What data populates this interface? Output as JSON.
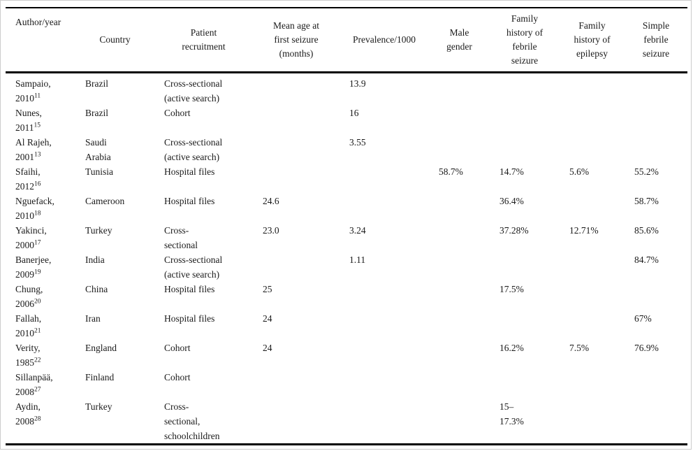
{
  "table": {
    "columns": [
      {
        "key": "author",
        "label": "Author/year"
      },
      {
        "key": "country",
        "label": "Country"
      },
      {
        "key": "recruitment",
        "label": "Patient\nrecruitment"
      },
      {
        "key": "mean_age",
        "label": "Mean age at\nfirst seizure\n(months)"
      },
      {
        "key": "prevalence",
        "label": "Prevalence/1000"
      },
      {
        "key": "male",
        "label": "Male\ngender"
      },
      {
        "key": "fh_febrile",
        "label": "Family\nhistory of\nfebrile\nseizure"
      },
      {
        "key": "fh_epilepsy",
        "label": "Family\nhistory of\nepilepsy"
      },
      {
        "key": "simple",
        "label": "Simple\nfebrile\nseizure"
      }
    ],
    "rows": [
      {
        "author": "Sampaio,",
        "year": "2010",
        "ref": "11",
        "country": "Brazil",
        "recruitment": "Cross-sectional\n(active search)",
        "mean_age": "",
        "prevalence": "13.9",
        "male": "",
        "fh_febrile": "",
        "fh_epilepsy": "",
        "simple": ""
      },
      {
        "author": "Nunes,",
        "year": "2011",
        "ref": "15",
        "country": "Brazil",
        "recruitment": "Cohort",
        "mean_age": "",
        "prevalence": "16",
        "male": "",
        "fh_febrile": "",
        "fh_epilepsy": "",
        "simple": ""
      },
      {
        "author": "Al Rajeh,",
        "year": "2001",
        "ref": "13",
        "country": "Saudi\nArabia",
        "recruitment": "Cross-sectional\n(active search)",
        "mean_age": "",
        "prevalence": "3.55",
        "male": "",
        "fh_febrile": "",
        "fh_epilepsy": "",
        "simple": ""
      },
      {
        "author": "Sfaihi,",
        "year": "2012",
        "ref": "16",
        "country": "Tunisia",
        "recruitment": "Hospital files",
        "mean_age": "",
        "prevalence": "",
        "male": "58.7%",
        "fh_febrile": "14.7%",
        "fh_epilepsy": "5.6%",
        "simple": "55.2%"
      },
      {
        "author": "Nguefack,",
        "year": "2010",
        "ref": "18",
        "country": "Cameroon",
        "recruitment": "Hospital files",
        "mean_age": "24.6",
        "prevalence": "",
        "male": "",
        "fh_febrile": "36.4%",
        "fh_epilepsy": "",
        "simple": "58.7%"
      },
      {
        "author": "Yakinci,",
        "year": "2000",
        "ref": "17",
        "country": "Turkey",
        "recruitment": "Cross-\nsectional",
        "mean_age": "23.0",
        "prevalence": "3.24",
        "male": "",
        "fh_febrile": "37.28%",
        "fh_epilepsy": "12.71%",
        "simple": "85.6%"
      },
      {
        "author": "Banerjee,",
        "year": "2009",
        "ref": "19",
        "country": "India",
        "recruitment": "Cross-sectional\n(active search)",
        "mean_age": "",
        "prevalence": "1.11",
        "male": "",
        "fh_febrile": "",
        "fh_epilepsy": "",
        "simple": "84.7%"
      },
      {
        "author": "Chung,",
        "year": "2006",
        "ref": "20",
        "country": "China",
        "recruitment": "Hospital files",
        "mean_age": "25",
        "prevalence": "",
        "male": "",
        "fh_febrile": "17.5%",
        "fh_epilepsy": "",
        "simple": ""
      },
      {
        "author": "Fallah,",
        "year": "2010",
        "ref": "21",
        "country": "Iran",
        "recruitment": "Hospital files",
        "mean_age": "24",
        "prevalence": "",
        "male": "",
        "fh_febrile": "",
        "fh_epilepsy": "",
        "simple": "67%"
      },
      {
        "author": "Verity,",
        "year": "1985",
        "ref": "22",
        "country": "England",
        "recruitment": "Cohort",
        "mean_age": "24",
        "prevalence": "",
        "male": "",
        "fh_febrile": "16.2%",
        "fh_epilepsy": "7.5%",
        "simple": "76.9%"
      },
      {
        "author": "Sillanpää,",
        "year": "2008",
        "ref": "27",
        "country": "Finland",
        "recruitment": "Cohort",
        "mean_age": "",
        "prevalence": "",
        "male": "",
        "fh_febrile": "",
        "fh_epilepsy": "",
        "simple": ""
      },
      {
        "author": "Aydin,",
        "year": "2008",
        "ref": "28",
        "country": "Turkey",
        "recruitment": "Cross-\nsectional,\nschoolchildren",
        "mean_age": "",
        "prevalence": "",
        "male": "",
        "fh_febrile": "15–\n17.3%",
        "fh_epilepsy": "",
        "simple": ""
      }
    ]
  }
}
